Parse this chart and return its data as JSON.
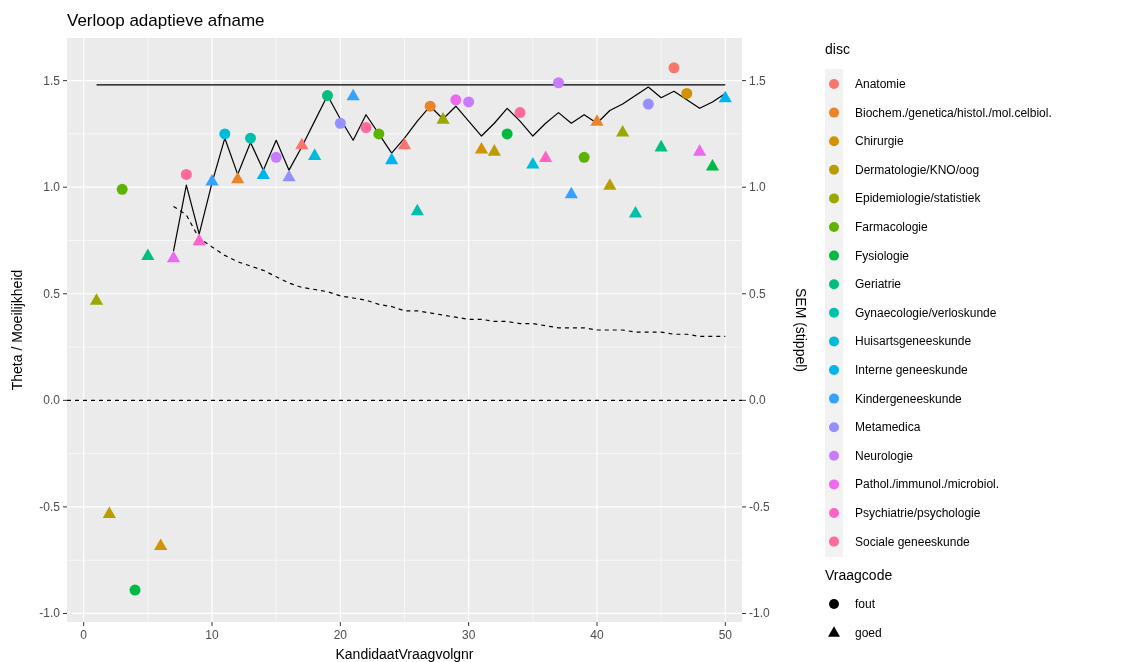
{
  "chart_data": {
    "type": "scatter",
    "title": "Verloop adaptieve afname",
    "xlabel": "KandidaatVraagvolgnr",
    "ylabel": "Theta / Moeilijkheid",
    "y2label": "SEM (stippel)",
    "legend_title": "disc",
    "annotations": [
      "Vraagcode"
    ],
    "legend": "right",
    "grid": true,
    "xlim": [
      -1.3,
      51.3
    ],
    "xticks": [
      0,
      10,
      20,
      30,
      40,
      50
    ],
    "ylim": [
      -1.04,
      1.7
    ],
    "yticks": [
      {
        "value": -1,
        "label": "-1.0"
      },
      {
        "value": -0.5,
        "label": "-0.5"
      },
      {
        "value": 0,
        "label": "0.0"
      },
      {
        "value": 0.5,
        "label": "0.5"
      },
      {
        "value": 1,
        "label": "1.0"
      },
      {
        "value": 1.5,
        "label": "1.5"
      }
    ],
    "y2lim": [
      -1.04,
      1.7
    ],
    "y2ticks": [
      {
        "value": -1,
        "label": "-1.0"
      },
      {
        "value": -0.5,
        "label": "-0.5"
      },
      {
        "value": 0,
        "label": "0.0"
      },
      {
        "value": 0.5,
        "label": "0.5"
      },
      {
        "value": 1,
        "label": "1.0"
      },
      {
        "value": 1.5,
        "label": "1.5"
      }
    ],
    "ref_lines": [
      {
        "axis": "y",
        "value": 0,
        "color": "#000000",
        "line_style": "dashed"
      }
    ],
    "series": [
      {
        "type": "line",
        "color": "#000000",
        "line_style": "solid",
        "marker": "none",
        "x": [
          1,
          50
        ],
        "values": [
          1.48,
          1.48
        ]
      },
      {
        "type": "line",
        "color": "#000000",
        "line_style": "solid",
        "marker": "none",
        "x": [
          7,
          8,
          9,
          10,
          11,
          12,
          13,
          14,
          15,
          16,
          17,
          18,
          19,
          20,
          21,
          22,
          23,
          24,
          25,
          26,
          27,
          28,
          29,
          30,
          31,
          32,
          33,
          34,
          35,
          36,
          37,
          38,
          39,
          40,
          41,
          42,
          43,
          44,
          45,
          46,
          47,
          48,
          49,
          50
        ],
        "values": [
          0.7,
          1.01,
          0.78,
          1.02,
          1.23,
          1.06,
          1.21,
          1.08,
          1.22,
          1.08,
          1.19,
          1.31,
          1.43,
          1.32,
          1.22,
          1.34,
          1.25,
          1.16,
          1.23,
          1.31,
          1.38,
          1.32,
          1.38,
          1.31,
          1.24,
          1.3,
          1.37,
          1.31,
          1.24,
          1.3,
          1.35,
          1.3,
          1.34,
          1.3,
          1.36,
          1.39,
          1.43,
          1.47,
          1.42,
          1.45,
          1.41,
          1.37,
          1.4,
          1.44
        ]
      },
      {
        "type": "line",
        "color": "#000000",
        "line_style": "dashed",
        "marker": "none",
        "x": [
          7,
          8,
          9,
          10,
          11,
          12,
          13,
          14,
          15,
          16,
          17,
          18,
          19,
          20,
          21,
          22,
          23,
          24,
          25,
          26,
          27,
          28,
          29,
          30,
          31,
          32,
          33,
          34,
          35,
          36,
          37,
          38,
          39,
          40,
          41,
          42,
          43,
          44,
          45,
          46,
          47,
          48,
          49,
          50
        ],
        "values": [
          0.91,
          0.87,
          0.76,
          0.72,
          0.68,
          0.65,
          0.63,
          0.61,
          0.58,
          0.55,
          0.53,
          0.52,
          0.51,
          0.49,
          0.48,
          0.47,
          0.45,
          0.44,
          0.42,
          0.42,
          0.41,
          0.4,
          0.39,
          0.38,
          0.38,
          0.37,
          0.37,
          0.36,
          0.36,
          0.35,
          0.34,
          0.34,
          0.34,
          0.33,
          0.33,
          0.33,
          0.32,
          0.32,
          0.32,
          0.31,
          0.31,
          0.3,
          0.3,
          0.3
        ]
      },
      {
        "name": "Anatomie",
        "color": "#f8766d",
        "marker": "circle",
        "x": [
          46
        ],
        "values": [
          1.56
        ]
      },
      {
        "color": "#f8766d",
        "marker": "triangle",
        "x": [
          17,
          25
        ],
        "values": [
          1.2,
          1.2
        ]
      },
      {
        "name": "Biochem./genetica/histol./mol.celbiol.",
        "color": "#e98429",
        "marker": "circle",
        "x": [
          27
        ],
        "values": [
          1.38
        ]
      },
      {
        "color": "#e98429",
        "marker": "triangle",
        "x": [
          12,
          40
        ],
        "values": [
          1.04,
          1.31
        ]
      },
      {
        "name": "Chirurgie",
        "color": "#d39200",
        "marker": "circle",
        "x": [
          47
        ],
        "values": [
          1.44
        ]
      },
      {
        "color": "#d39200",
        "marker": "triangle",
        "x": [
          6,
          31
        ],
        "values": [
          -0.68,
          1.18
        ]
      },
      {
        "name": "Dermatologie/KNO/oog",
        "color": "#ba9e00",
        "marker": "triangle",
        "x": [
          2,
          32,
          41
        ],
        "values": [
          -0.53,
          1.17,
          1.01
        ]
      },
      {
        "name": "Epidemiologie/statistiek",
        "color": "#9aa800",
        "marker": "triangle",
        "x": [
          1,
          28,
          42
        ],
        "values": [
          0.47,
          1.32,
          1.26
        ]
      },
      {
        "name": "Farmacologie",
        "color": "#5eb300",
        "marker": "circle",
        "x": [
          3,
          23,
          39
        ],
        "values": [
          0.99,
          1.25,
          1.14
        ]
      },
      {
        "name": "Fysiologie",
        "color": "#00ba42",
        "marker": "circle",
        "x": [
          4,
          33
        ],
        "values": [
          -0.89,
          1.25
        ]
      },
      {
        "color": "#00ba42",
        "marker": "triangle",
        "x": [
          49
        ],
        "values": [
          1.1
        ]
      },
      {
        "name": "Geriatrie",
        "color": "#00bf7d",
        "marker": "circle",
        "x": [
          19
        ],
        "values": [
          1.43
        ]
      },
      {
        "color": "#00bf7d",
        "marker": "triangle",
        "x": [
          5,
          45
        ],
        "values": [
          0.68,
          1.19
        ]
      },
      {
        "name": "Gynaecologie/verloskunde",
        "color": "#00c0ab",
        "marker": "circle",
        "x": [
          13
        ],
        "values": [
          1.23
        ]
      },
      {
        "color": "#00c0ab",
        "marker": "triangle",
        "x": [
          26,
          43
        ],
        "values": [
          0.89,
          0.88
        ]
      },
      {
        "name": "Huisartsgeneeskunde",
        "color": "#00bcd8",
        "marker": "circle",
        "x": [
          11
        ],
        "values": [
          1.25
        ]
      },
      {
        "color": "#00bcd8",
        "marker": "triangle",
        "x": [
          18,
          35
        ],
        "values": [
          1.15,
          1.11
        ]
      },
      {
        "name": "Interne geneeskunde",
        "color": "#00b4f0",
        "marker": "triangle",
        "x": [
          14,
          24,
          50
        ],
        "values": [
          1.06,
          1.13,
          1.42
        ]
      },
      {
        "name": "Kindergeneeskunde",
        "color": "#35a2ff",
        "marker": "triangle",
        "x": [
          10,
          21,
          38
        ],
        "values": [
          1.03,
          1.43,
          0.97
        ]
      },
      {
        "name": "Metamedica",
        "color": "#9590ff",
        "marker": "circle",
        "x": [
          20,
          44
        ],
        "values": [
          1.3,
          1.39
        ]
      },
      {
        "color": "#9590ff",
        "marker": "triangle",
        "x": [
          16
        ],
        "values": [
          1.05
        ]
      },
      {
        "name": "Neurologie",
        "color": "#c77cff",
        "marker": "circle",
        "x": [
          15,
          30,
          37
        ],
        "values": [
          1.14,
          1.4,
          1.49
        ]
      },
      {
        "name": "Pathol./immunol./microbiol.",
        "color": "#eb6af0",
        "marker": "circle",
        "x": [
          29
        ],
        "values": [
          1.41
        ]
      },
      {
        "color": "#eb6af0",
        "marker": "triangle",
        "x": [
          7,
          48
        ],
        "values": [
          0.67,
          1.17
        ]
      },
      {
        "name": "Psychiatrie/psychologie",
        "color": "#ff63c9",
        "marker": "triangle",
        "x": [
          9,
          36
        ],
        "values": [
          0.75,
          1.14
        ]
      },
      {
        "name": "Sociale geneeskunde",
        "color": "#ff6a98",
        "marker": "circle",
        "x": [
          8,
          22,
          34
        ],
        "values": [
          1.06,
          1.28,
          1.35
        ]
      },
      {
        "name": "fout",
        "color": "#000000",
        "marker": "circle"
      },
      {
        "name": "goed",
        "color": "#000000",
        "marker": "triangle"
      }
    ]
  }
}
